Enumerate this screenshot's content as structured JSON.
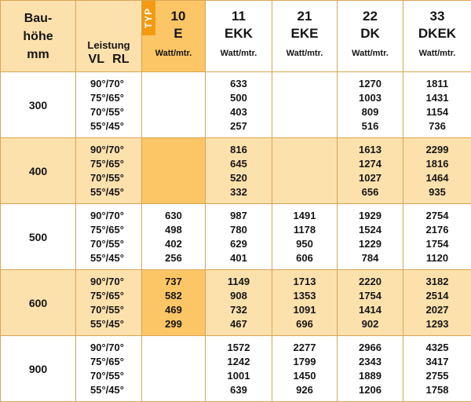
{
  "header": {
    "bauhoehe": [
      "Bau-",
      "höhe",
      "mm"
    ],
    "leistung_label": "Leistung",
    "leistung_sub": "VL RL",
    "typ_badge": "TYP",
    "types": [
      {
        "num": "10",
        "code": "E",
        "unit": "Watt/mtr."
      },
      {
        "num": "11",
        "code": "EKK",
        "unit": "Watt/mtr."
      },
      {
        "num": "21",
        "code": "EKE",
        "unit": "Watt/mtr."
      },
      {
        "num": "22",
        "code": "DK",
        "unit": "Watt/mtr."
      },
      {
        "num": "33",
        "code": "DKEK",
        "unit": "Watt/mtr."
      }
    ]
  },
  "temps": [
    "90°/70°",
    "75°/65°",
    "70°/55°",
    "55°/45°"
  ],
  "rows": [
    {
      "height": "300",
      "values": [
        [
          "",
          "",
          "",
          ""
        ],
        [
          "633",
          "500",
          "403",
          "257"
        ],
        [
          "",
          "",
          "",
          ""
        ],
        [
          "1270",
          "1003",
          "809",
          "516"
        ],
        [
          "1811",
          "1431",
          "1154",
          "736"
        ]
      ]
    },
    {
      "height": "400",
      "values": [
        [
          "",
          "",
          "",
          ""
        ],
        [
          "816",
          "645",
          "520",
          "332"
        ],
        [
          "",
          "",
          "",
          ""
        ],
        [
          "1613",
          "1274",
          "1027",
          "656"
        ],
        [
          "2299",
          "1816",
          "1464",
          "935"
        ]
      ]
    },
    {
      "height": "500",
      "values": [
        [
          "630",
          "498",
          "402",
          "256"
        ],
        [
          "987",
          "780",
          "629",
          "401"
        ],
        [
          "1491",
          "1178",
          "950",
          "606"
        ],
        [
          "1929",
          "1524",
          "1229",
          "784"
        ],
        [
          "2754",
          "2176",
          "1754",
          "1120"
        ]
      ]
    },
    {
      "height": "600",
      "values": [
        [
          "737",
          "582",
          "469",
          "299"
        ],
        [
          "1149",
          "908",
          "732",
          "467"
        ],
        [
          "1713",
          "1353",
          "1091",
          "696"
        ],
        [
          "2220",
          "1754",
          "1414",
          "902"
        ],
        [
          "3182",
          "2514",
          "2027",
          "1293"
        ]
      ]
    },
    {
      "height": "900",
      "values": [
        [
          "",
          "",
          "",
          ""
        ],
        [
          "1572",
          "1242",
          "1001",
          "639"
        ],
        [
          "2277",
          "1799",
          "1450",
          "926"
        ],
        [
          "2966",
          "2343",
          "1889",
          "1206"
        ],
        [
          "4325",
          "3417",
          "2755",
          "1758"
        ]
      ]
    }
  ]
}
